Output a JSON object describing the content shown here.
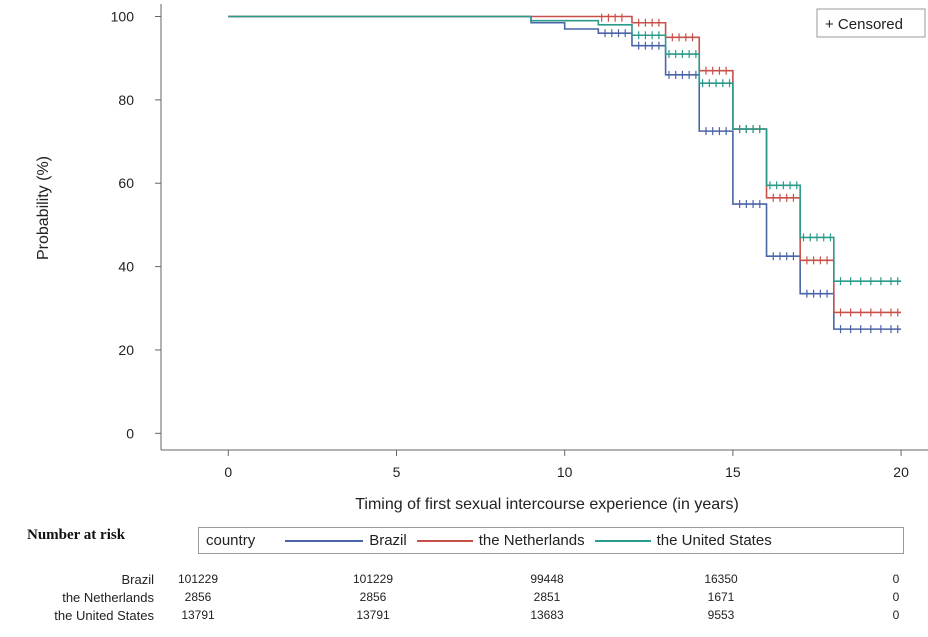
{
  "chart_data": {
    "type": "line",
    "subtype": "kaplan-meier-step",
    "xlabel": "Timing of first sexual intercourse experience (in years)",
    "ylabel": "Probability (%)",
    "xlim": [
      -2,
      20.8
    ],
    "ylim": [
      -4,
      103
    ],
    "xticks": [
      0,
      5,
      10,
      15,
      20
    ],
    "yticks": [
      0,
      20,
      40,
      60,
      80,
      100
    ],
    "grid": false,
    "legend_inset": "+ Censored",
    "legend_inset_position": "top-right",
    "series": [
      {
        "name": "Brazil",
        "color": "#4a64a8",
        "steps": [
          [
            0,
            100
          ],
          [
            9,
            98.5
          ],
          [
            10,
            97
          ],
          [
            11,
            96
          ],
          [
            12,
            93
          ],
          [
            13,
            86
          ],
          [
            14,
            72.5
          ],
          [
            15,
            55
          ],
          [
            16,
            42.5
          ],
          [
            17,
            33.5
          ],
          [
            18,
            25
          ],
          [
            20,
            25
          ]
        ],
        "censored": [
          [
            11.2,
            96
          ],
          [
            11.4,
            96
          ],
          [
            11.6,
            96
          ],
          [
            11.8,
            96
          ],
          [
            12.2,
            93
          ],
          [
            12.4,
            93
          ],
          [
            12.6,
            93
          ],
          [
            12.8,
            93
          ],
          [
            13.1,
            86
          ],
          [
            13.3,
            86
          ],
          [
            13.5,
            86
          ],
          [
            13.7,
            86
          ],
          [
            13.9,
            86
          ],
          [
            14.2,
            72.5
          ],
          [
            14.4,
            72.5
          ],
          [
            14.6,
            72.5
          ],
          [
            14.8,
            72.5
          ],
          [
            15.2,
            55
          ],
          [
            15.4,
            55
          ],
          [
            15.6,
            55
          ],
          [
            15.8,
            55
          ],
          [
            16.2,
            42.5
          ],
          [
            16.4,
            42.5
          ],
          [
            16.6,
            42.5
          ],
          [
            16.8,
            42.5
          ],
          [
            17.2,
            33.5
          ],
          [
            17.4,
            33.5
          ],
          [
            17.6,
            33.5
          ],
          [
            17.8,
            33.5
          ],
          [
            18.2,
            25
          ],
          [
            18.5,
            25
          ],
          [
            18.8,
            25
          ],
          [
            19.1,
            25
          ],
          [
            19.4,
            25
          ],
          [
            19.7,
            25
          ],
          [
            19.9,
            25
          ]
        ]
      },
      {
        "name": "the Netherlands",
        "color": "#c8504a",
        "steps": [
          [
            0,
            100
          ],
          [
            12,
            98.5
          ],
          [
            13,
            95
          ],
          [
            14,
            87
          ],
          [
            15,
            73
          ],
          [
            16,
            56.5
          ],
          [
            17,
            41.5
          ],
          [
            18,
            29
          ],
          [
            20,
            29
          ]
        ],
        "censored": [
          [
            11.1,
            99.7
          ],
          [
            11.3,
            99.7
          ],
          [
            11.5,
            99.7
          ],
          [
            11.7,
            99.7
          ],
          [
            12.2,
            98.5
          ],
          [
            12.4,
            98.5
          ],
          [
            12.6,
            98.5
          ],
          [
            12.8,
            98.5
          ],
          [
            13.2,
            95
          ],
          [
            13.4,
            95
          ],
          [
            13.6,
            95
          ],
          [
            13.8,
            95
          ],
          [
            14.2,
            87
          ],
          [
            14.4,
            87
          ],
          [
            14.6,
            87
          ],
          [
            14.8,
            87
          ],
          [
            15.2,
            73
          ],
          [
            15.4,
            73
          ],
          [
            15.6,
            73
          ],
          [
            15.8,
            73
          ],
          [
            16.2,
            56.5
          ],
          [
            16.4,
            56.5
          ],
          [
            16.6,
            56.5
          ],
          [
            16.8,
            56.5
          ],
          [
            17.2,
            41.5
          ],
          [
            17.4,
            41.5
          ],
          [
            17.6,
            41.5
          ],
          [
            17.8,
            41.5
          ],
          [
            18.2,
            29
          ],
          [
            18.5,
            29
          ],
          [
            18.8,
            29
          ],
          [
            19.1,
            29
          ],
          [
            19.4,
            29
          ],
          [
            19.7,
            29
          ],
          [
            19.9,
            29
          ]
        ]
      },
      {
        "name": "the United States",
        "color": "#2a9a8a",
        "steps": [
          [
            0,
            100
          ],
          [
            9,
            99
          ],
          [
            11,
            98
          ],
          [
            12,
            95.5
          ],
          [
            13,
            91
          ],
          [
            14,
            84
          ],
          [
            15,
            73
          ],
          [
            16,
            59.5
          ],
          [
            17,
            47
          ],
          [
            18,
            36.5
          ],
          [
            20,
            36.5
          ]
        ],
        "censored": [
          [
            12.2,
            95.5
          ],
          [
            12.4,
            95.5
          ],
          [
            12.6,
            95.5
          ],
          [
            12.8,
            95.5
          ],
          [
            13.1,
            91
          ],
          [
            13.3,
            91
          ],
          [
            13.5,
            91
          ],
          [
            13.7,
            91
          ],
          [
            13.9,
            91
          ],
          [
            14.1,
            84
          ],
          [
            14.3,
            84
          ],
          [
            14.5,
            84
          ],
          [
            14.7,
            84
          ],
          [
            14.9,
            84
          ],
          [
            15.2,
            73
          ],
          [
            15.4,
            73
          ],
          [
            15.6,
            73
          ],
          [
            15.8,
            73
          ],
          [
            16.1,
            59.5
          ],
          [
            16.3,
            59.5
          ],
          [
            16.5,
            59.5
          ],
          [
            16.7,
            59.5
          ],
          [
            16.9,
            59.5
          ],
          [
            17.1,
            47
          ],
          [
            17.3,
            47
          ],
          [
            17.5,
            47
          ],
          [
            17.7,
            47
          ],
          [
            17.9,
            47
          ],
          [
            18.2,
            36.5
          ],
          [
            18.5,
            36.5
          ],
          [
            18.8,
            36.5
          ],
          [
            19.1,
            36.5
          ],
          [
            19.4,
            36.5
          ],
          [
            19.7,
            36.5
          ],
          [
            19.9,
            36.5
          ]
        ]
      }
    ]
  },
  "risk_table": {
    "title": "Number at risk",
    "legend_title": "country",
    "times": [
      0,
      5,
      10,
      15,
      20
    ],
    "rows": [
      {
        "label": "Brazil",
        "values": [
          "101229",
          "101229",
          "99448",
          "16350",
          "0"
        ]
      },
      {
        "label": "the Netherlands",
        "values": [
          "2856",
          "2856",
          "2851",
          "1671",
          "0"
        ]
      },
      {
        "label": "the United States",
        "values": [
          "13791",
          "13791",
          "13683",
          "9553",
          "0"
        ]
      }
    ]
  }
}
